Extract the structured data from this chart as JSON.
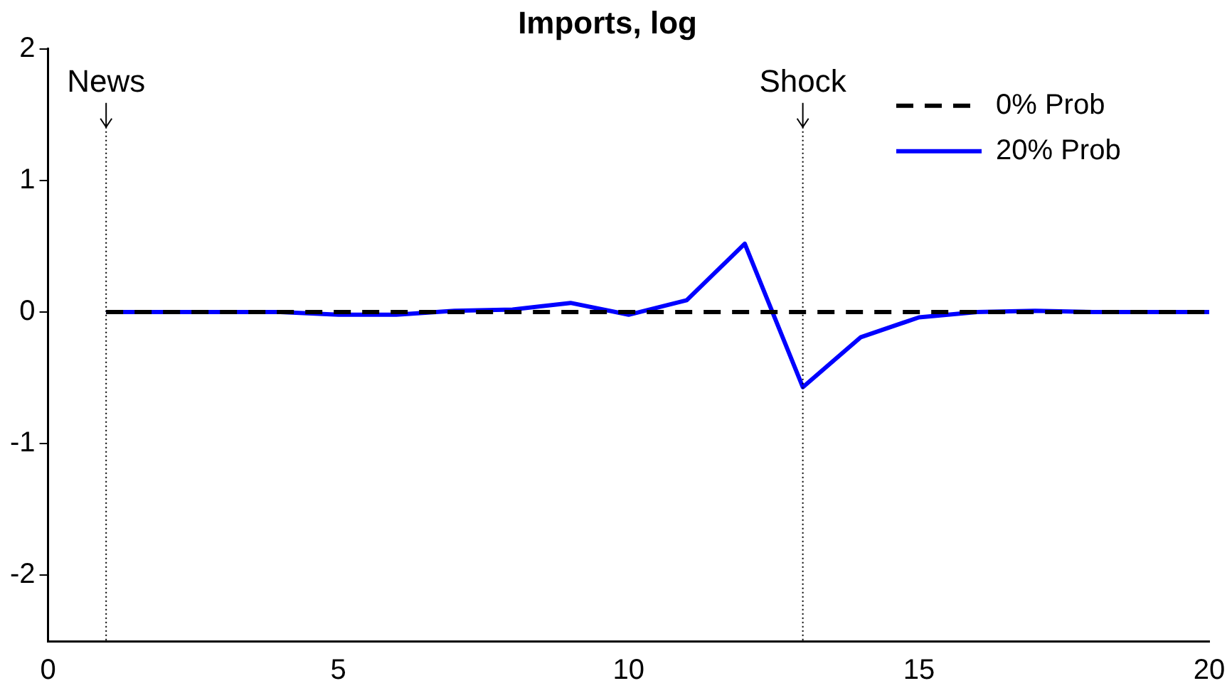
{
  "chart_data": {
    "type": "line",
    "title": "Imports, log",
    "x": [
      1,
      2,
      3,
      4,
      5,
      6,
      7,
      8,
      9,
      10,
      11,
      12,
      13,
      14,
      15,
      16,
      17,
      18,
      19,
      20
    ],
    "series": [
      {
        "name": "0% Prob",
        "color": "#000000",
        "line_style": "dashed",
        "values": [
          0,
          0,
          0,
          0,
          0,
          0,
          0,
          0,
          0,
          0,
          0,
          0,
          0,
          0,
          0,
          0,
          0,
          0,
          0,
          0
        ]
      },
      {
        "name": "20% Prob",
        "color": "#0000ff",
        "line_style": "solid",
        "values": [
          0,
          0,
          0,
          0,
          -0.02,
          -0.02,
          0.01,
          0.02,
          0.07,
          -0.02,
          0.09,
          0.52,
          -0.57,
          -0.19,
          -0.04,
          0,
          0.01,
          0,
          0,
          0
        ]
      }
    ],
    "xlim": [
      0,
      20
    ],
    "xticks": [
      0,
      5,
      10,
      15,
      20
    ],
    "ylim": [
      -2.5,
      2
    ],
    "yticks": [
      -2,
      -1,
      0,
      1,
      2
    ],
    "ref_lines": [
      {
        "axis": "x",
        "value": 1,
        "label": "News",
        "line_style": "dotted",
        "color": "#000000"
      },
      {
        "axis": "x",
        "value": 13,
        "label": "Shock",
        "line_style": "dotted",
        "color": "#000000"
      }
    ],
    "legend": "top right",
    "grid": false,
    "marker": "none"
  }
}
